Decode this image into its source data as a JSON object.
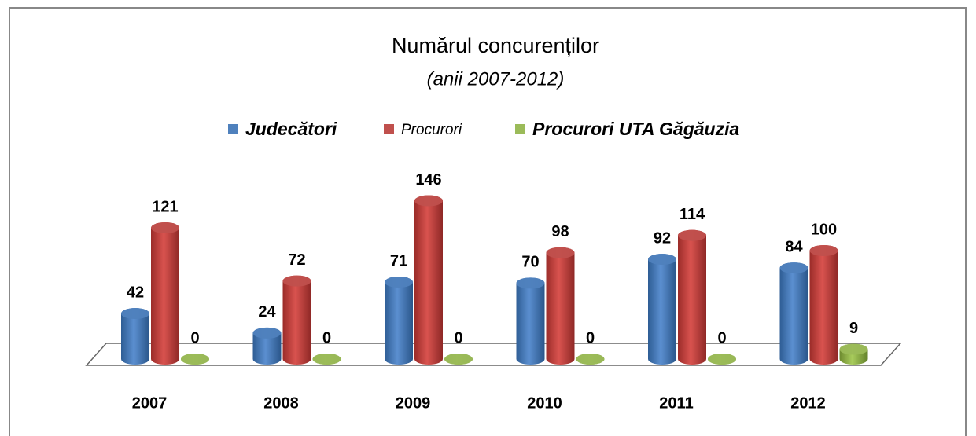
{
  "chart_data": {
    "type": "bar",
    "title": "Numărul concurenților",
    "subtitle": "(anii 2007-2012)",
    "categories": [
      "2007",
      "2008",
      "2009",
      "2010",
      "2011",
      "2012"
    ],
    "series": [
      {
        "name": "Judecători",
        "color": "#4f81bd",
        "values": [
          42,
          24,
          71,
          70,
          92,
          84
        ]
      },
      {
        "name": "Procurori",
        "color": "#c0504d",
        "values": [
          121,
          72,
          146,
          98,
          114,
          100
        ]
      },
      {
        "name": "Procurori UTA Găgăuzia",
        "color": "#9bbb59",
        "values": [
          0,
          0,
          0,
          0,
          0,
          9
        ]
      }
    ],
    "legend": "top"
  }
}
